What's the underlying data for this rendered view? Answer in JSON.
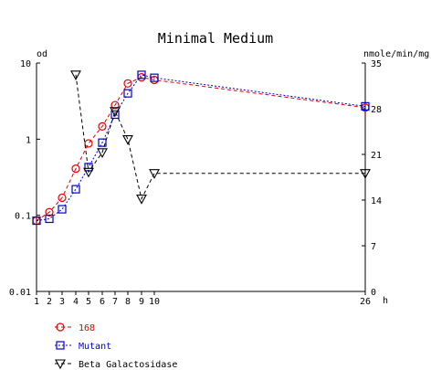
{
  "chart_data": {
    "type": "line",
    "title": "Minimal Medium",
    "x": {
      "ticks": [
        1,
        2,
        3,
        4,
        5,
        6,
        7,
        8,
        9,
        10,
        26
      ],
      "unit": "h",
      "scale": "discontinuous"
    },
    "y_left": {
      "label": "od",
      "scale": "log",
      "ylim": [
        0.01,
        10
      ],
      "ticks": [
        0.01,
        0.1,
        1,
        10
      ],
      "tick_labels": [
        "0.01",
        "0.1",
        "1",
        "10"
      ]
    },
    "y_right": {
      "label": "nmole/min/mg",
      "scale": "linear",
      "ylim": [
        0,
        35
      ],
      "ticks": [
        0,
        7,
        14,
        21,
        28,
        35
      ]
    },
    "grid": false,
    "legend_position": "bottom-left",
    "series": [
      {
        "name": "168",
        "axis": "left",
        "color": "#e00000",
        "line_style": "dashed",
        "marker": "circle",
        "x": [
          1,
          2,
          3,
          4,
          5,
          6,
          7,
          8,
          9,
          10,
          26
        ],
        "values": [
          0.085,
          0.11,
          0.17,
          0.41,
          0.88,
          1.47,
          2.8,
          5.4,
          6.5,
          6.0,
          2.6
        ]
      },
      {
        "name": "Mutant",
        "axis": "left",
        "color": "#0000d0",
        "line_style": "dotted",
        "marker": "square",
        "x": [
          1,
          2,
          3,
          4,
          5,
          6,
          7,
          8,
          9,
          10,
          26
        ],
        "values": [
          0.085,
          0.09,
          0.12,
          0.22,
          0.43,
          0.9,
          2.1,
          4.0,
          7.0,
          6.4,
          2.7
        ]
      },
      {
        "name": "Beta Galactosidase",
        "axis": "right",
        "color": "#000000",
        "line_style": "dashed",
        "marker": "triangle-down",
        "x": [
          4,
          5,
          6,
          7,
          8,
          9,
          10,
          26
        ],
        "values": [
          33.2,
          18.3,
          21.3,
          27.6,
          23.3,
          14.2,
          18.1,
          18.1
        ]
      }
    ]
  }
}
